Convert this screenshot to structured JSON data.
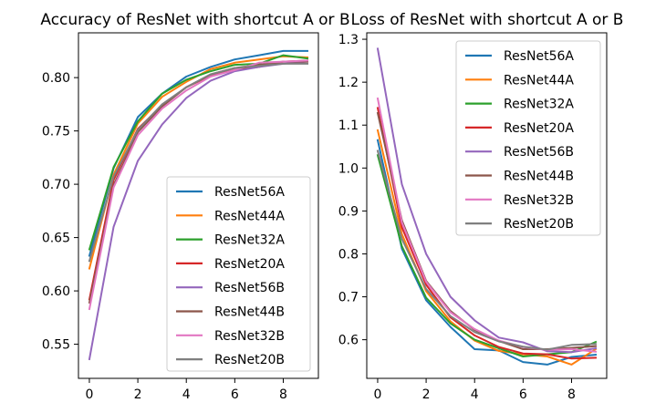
{
  "chart_data": [
    {
      "type": "line",
      "title": "Accuracy of ResNet with shortcut A or B",
      "xlabel": "",
      "ylabel": "",
      "xlim": [
        -0.45,
        9.45
      ],
      "ylim": [
        0.518,
        0.842
      ],
      "xticks": [
        0,
        2,
        4,
        6,
        8
      ],
      "yticks": [
        0.55,
        0.6,
        0.65,
        0.7,
        0.75,
        0.8
      ],
      "ytick_labels": [
        "0.55",
        "0.60",
        "0.65",
        "0.70",
        "0.75",
        "0.80"
      ],
      "grid": false,
      "legend_position": "lower-right",
      "x": [
        0,
        1,
        2,
        3,
        4,
        5,
        6,
        7,
        8,
        9
      ],
      "series": [
        {
          "name": "ResNet56A",
          "color": "#1f77b4",
          "values": [
            0.633,
            0.715,
            0.763,
            0.785,
            0.801,
            0.81,
            0.817,
            0.821,
            0.825,
            0.825
          ]
        },
        {
          "name": "ResNet44A",
          "color": "#ff7f0e",
          "values": [
            0.621,
            0.709,
            0.757,
            0.782,
            0.796,
            0.808,
            0.814,
            0.817,
            0.82,
            0.819
          ]
        },
        {
          "name": "ResNet32A",
          "color": "#2ca02c",
          "values": [
            0.639,
            0.716,
            0.759,
            0.785,
            0.798,
            0.806,
            0.812,
            0.813,
            0.821,
            0.818
          ]
        },
        {
          "name": "ResNet20A",
          "color": "#d62728",
          "values": [
            0.592,
            0.704,
            0.752,
            0.774,
            0.791,
            0.802,
            0.807,
            0.81,
            0.815,
            0.816
          ]
        },
        {
          "name": "ResNet56B",
          "color": "#9467bd",
          "values": [
            0.536,
            0.66,
            0.722,
            0.756,
            0.781,
            0.797,
            0.806,
            0.81,
            0.813,
            0.815
          ]
        },
        {
          "name": "ResNet44B",
          "color": "#8c564b",
          "values": [
            0.589,
            0.699,
            0.749,
            0.773,
            0.791,
            0.803,
            0.809,
            0.812,
            0.815,
            0.815
          ]
        },
        {
          "name": "ResNet32B",
          "color": "#e377c2",
          "values": [
            0.583,
            0.697,
            0.746,
            0.771,
            0.788,
            0.801,
            0.807,
            0.814,
            0.815,
            0.816
          ]
        },
        {
          "name": "ResNet20B",
          "color": "#7f7f7f",
          "values": [
            0.628,
            0.707,
            0.751,
            0.775,
            0.791,
            0.803,
            0.809,
            0.811,
            0.813,
            0.813
          ]
        }
      ]
    },
    {
      "type": "line",
      "title": "Loss of ResNet with shortcut A or B",
      "xlabel": "",
      "ylabel": "",
      "xlim": [
        -0.45,
        9.45
      ],
      "ylim": [
        0.51,
        1.315
      ],
      "xticks": [
        0,
        2,
        4,
        6,
        8
      ],
      "yticks": [
        0.6,
        0.7,
        0.8,
        0.9,
        1.0,
        1.1,
        1.2,
        1.3
      ],
      "ytick_labels": [
        "0.6",
        "0.7",
        "0.8",
        "0.9",
        "1.0",
        "1.1",
        "1.2",
        "1.3"
      ],
      "grid": false,
      "legend_position": "upper-right",
      "x": [
        0,
        1,
        2,
        3,
        4,
        5,
        6,
        7,
        8,
        9
      ],
      "series": [
        {
          "name": "ResNet56A",
          "color": "#1f77b4",
          "values": [
            1.065,
            0.812,
            0.692,
            0.63,
            0.578,
            0.575,
            0.548,
            0.542,
            0.56,
            0.565
          ]
        },
        {
          "name": "ResNet44A",
          "color": "#ff7f0e",
          "values": [
            1.088,
            0.846,
            0.713,
            0.643,
            0.598,
            0.574,
            0.566,
            0.561,
            0.542,
            0.578
          ]
        },
        {
          "name": "ResNet32A",
          "color": "#2ca02c",
          "values": [
            1.03,
            0.818,
            0.698,
            0.638,
            0.6,
            0.58,
            0.561,
            0.566,
            0.571,
            0.595
          ]
        },
        {
          "name": "ResNet20A",
          "color": "#d62728",
          "values": [
            1.14,
            0.862,
            0.728,
            0.652,
            0.61,
            0.583,
            0.568,
            0.566,
            0.556,
            0.558
          ]
        },
        {
          "name": "ResNet56B",
          "color": "#9467bd",
          "values": [
            1.278,
            0.962,
            0.8,
            0.7,
            0.645,
            0.605,
            0.594,
            0.573,
            0.571,
            0.58
          ]
        },
        {
          "name": "ResNet44B",
          "color": "#8c564b",
          "values": [
            1.128,
            0.878,
            0.737,
            0.667,
            0.623,
            0.597,
            0.578,
            0.578,
            0.581,
            0.585
          ]
        },
        {
          "name": "ResNet32B",
          "color": "#e377c2",
          "values": [
            1.162,
            0.873,
            0.735,
            0.664,
            0.625,
            0.598,
            0.583,
            0.576,
            0.578,
            0.572
          ]
        },
        {
          "name": "ResNet20B",
          "color": "#7f7f7f",
          "values": [
            1.04,
            0.835,
            0.718,
            0.655,
            0.618,
            0.596,
            0.584,
            0.577,
            0.588,
            0.59
          ]
        }
      ]
    }
  ]
}
